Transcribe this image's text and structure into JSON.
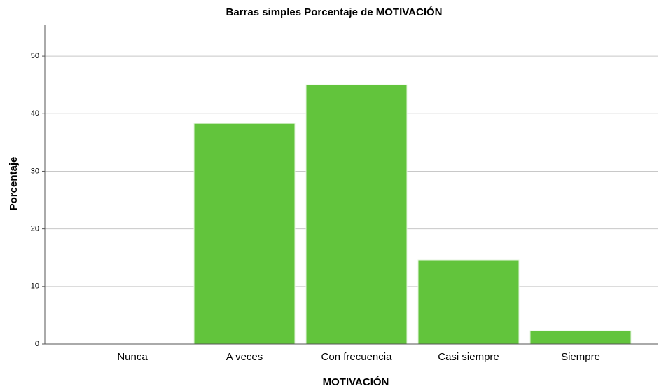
{
  "chart_data": {
    "type": "bar",
    "title": "Barras simples Porcentaje de MOTIVACIÓN",
    "x_label": "MOTIVACIÓN",
    "y_label": "Porcentaje",
    "categories": [
      "Nunca",
      "A veces",
      "Con frecuencia",
      "Casi siempre",
      "Siempre"
    ],
    "values": [
      0,
      38.3,
      45.0,
      14.6,
      2.3
    ],
    "color": "#62c43c",
    "ylim": [
      0,
      55
    ],
    "yticks": [
      0,
      10,
      20,
      30,
      40,
      50
    ],
    "grid": true
  }
}
